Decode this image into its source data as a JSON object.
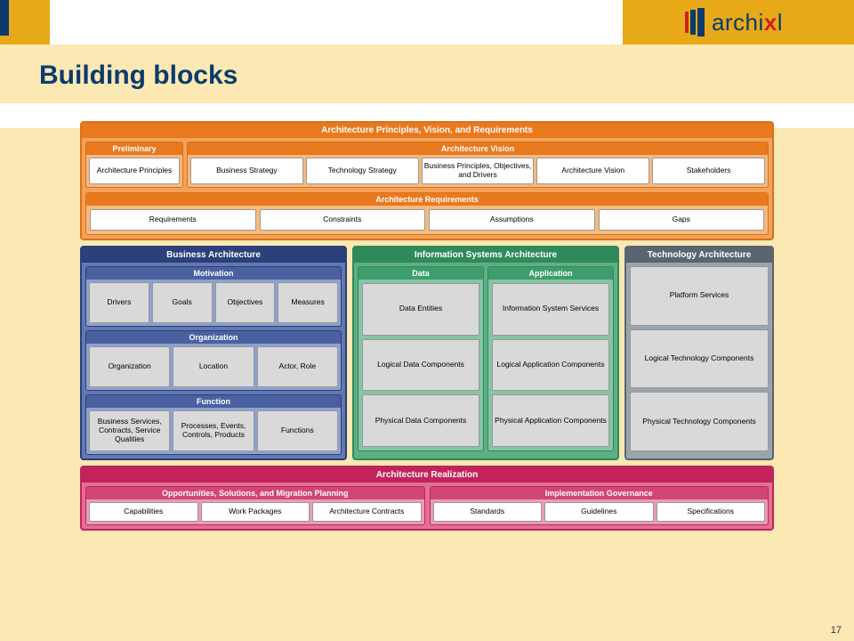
{
  "branding": {
    "logo_text_a": "archi",
    "logo_text_b": "l"
  },
  "slide": {
    "title": "Building blocks",
    "page": "17"
  },
  "colors": {
    "page_bg": "#fbe8b3",
    "brand_blue": "#0a3b6c",
    "brand_gold": "#e8a918",
    "orange_border": "#d9711a",
    "orange_fill": "#f2a25a",
    "orange_head": "#e8791f",
    "blue_border": "#2b3f7a",
    "blue_fill": "#6279b0",
    "blue_head": "#2b3f7a",
    "green_border": "#2f8a5b",
    "green_fill": "#5fae84",
    "green_head": "#2f8a5b",
    "grey_border": "#5a6570",
    "grey_fill": "#9aa4ad",
    "red_border": "#c2245a",
    "red_fill": "#e17095",
    "red_head": "#c2245a",
    "cell_grey": "#d9d9d9",
    "cell_white": "#ffffff"
  },
  "top": {
    "title": "Architecture Principles, Vision, and Requirements",
    "preliminary": {
      "head": "Preliminary",
      "cell": "Architecture Principles"
    },
    "vision": {
      "head": "Architecture Vision",
      "cells": [
        "Business Strategy",
        "Technology Strategy",
        "Business Principles, Objectives, and Drivers",
        "Architecture Vision",
        "Stakeholders"
      ]
    },
    "requirements": {
      "head": "Architecture Requirements",
      "cells": [
        "Requirements",
        "Constraints",
        "Assumptions",
        "Gaps"
      ]
    }
  },
  "biz": {
    "title": "Business Architecture",
    "motivation": {
      "head": "Motivation",
      "cells": [
        "Drivers",
        "Goals",
        "Objectives",
        "Measures"
      ]
    },
    "organization": {
      "head": "Organization",
      "cells": [
        "Organization",
        "Location",
        "Actor, Role"
      ]
    },
    "function": {
      "head": "Function",
      "cells": [
        "Business Services, Contracts, Service Qualities",
        "Processes, Events, Controls, Products",
        "Functions"
      ]
    }
  },
  "is": {
    "title": "Information Systems Architecture",
    "data": {
      "head": "Data",
      "cells": [
        "Data Entities",
        "Logical Data Components",
        "Physical Data Components"
      ]
    },
    "app": {
      "head": "Application",
      "cells": [
        "Information System Services",
        "Logical Application Components",
        "Physical Application Components"
      ]
    }
  },
  "tech": {
    "title": "Technology Architecture",
    "cells": [
      "Platform Services",
      "Logical Technology Components",
      "Physical Technology Components"
    ]
  },
  "real": {
    "title": "Architecture Realization",
    "left": {
      "head": "Opportunities, Solutions, and Migration Planning",
      "cells": [
        "Capabilities",
        "Work Packages",
        "Architecture Contracts"
      ]
    },
    "right": {
      "head": "Implementation Governance",
      "cells": [
        "Standards",
        "Guidelines",
        "Specifications"
      ]
    }
  }
}
